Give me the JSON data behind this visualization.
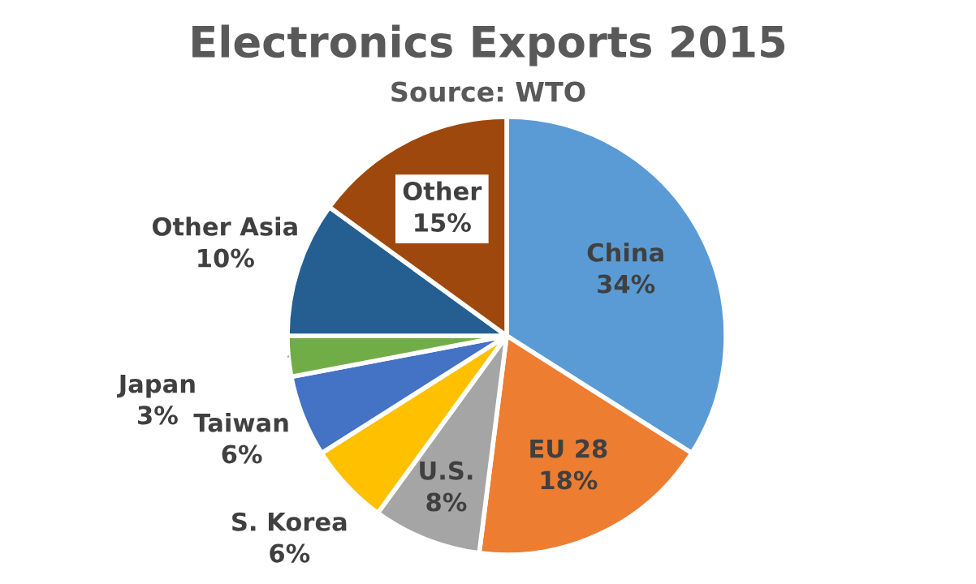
{
  "chart_data": {
    "type": "pie",
    "title": "Electronics Exports 2015",
    "subtitle": "Source: WTO",
    "categories": [
      "China",
      "EU 28",
      "U.S.",
      "S. Korea",
      "Taiwan",
      "Japan",
      "Other Asia",
      "Other"
    ],
    "values": [
      34,
      18,
      8,
      6,
      6,
      3,
      10,
      15
    ],
    "value_labels": [
      "34%",
      "18%",
      "8%",
      "6%",
      "6%",
      "3%",
      "10%",
      "15%"
    ],
    "colors": [
      "#5b9bd5",
      "#ed7d31",
      "#a5a5a5",
      "#ffc000",
      "#4472c4",
      "#70ad47",
      "#255e91",
      "#9e480e"
    ],
    "legend": false
  }
}
